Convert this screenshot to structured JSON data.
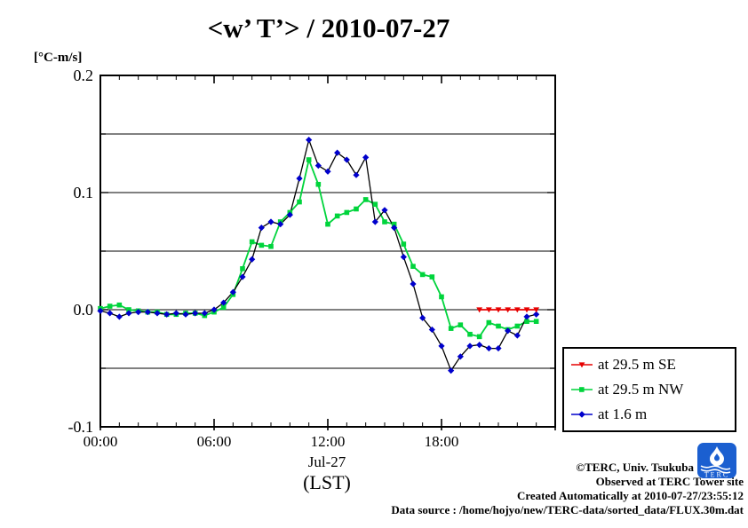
{
  "title": "<w’ T’> / 2010-07-27",
  "y_unit_label": "[°C-m/s]",
  "chart_data": {
    "type": "line",
    "title": "<w’ T’> / 2010-07-27",
    "ylabel": "[°C-m/s]",
    "xlabel": "Jul-27 (LST)",
    "x_sub_label": "Jul-27",
    "x_unit_label": "(LST)",
    "xlim_hours": [
      0,
      24
    ],
    "ylim": [
      -0.1,
      0.2
    ],
    "x_tick_labels": [
      "00:00",
      "06:00",
      "12:00",
      "18:00"
    ],
    "x_tick_hours": [
      0,
      6,
      12,
      18
    ],
    "x_major_hours": [
      0,
      6,
      12,
      18,
      24
    ],
    "y_tick_values": [
      -0.1,
      0.0,
      0.1,
      0.2
    ],
    "y_tick_labels": [
      "-0.1",
      "0.0",
      "0.1",
      "0.2"
    ],
    "grid": true,
    "grid_values": [
      -0.05,
      0.0,
      0.05,
      0.1,
      0.15
    ],
    "legend_position": "outside-right-bottom",
    "x_times": [
      "00:00",
      "00:30",
      "01:00",
      "01:30",
      "02:00",
      "02:30",
      "03:00",
      "03:30",
      "04:00",
      "04:30",
      "05:00",
      "05:30",
      "06:00",
      "06:30",
      "07:00",
      "07:30",
      "08:00",
      "08:30",
      "09:00",
      "09:30",
      "10:00",
      "10:30",
      "11:00",
      "11:30",
      "12:00",
      "12:30",
      "13:00",
      "13:30",
      "14:00",
      "14:30",
      "15:00",
      "15:30",
      "16:00",
      "16:30",
      "17:00",
      "17:30",
      "18:00",
      "18:30",
      "19:00",
      "19:30",
      "20:00",
      "20:30",
      "21:00",
      "21:30",
      "22:00",
      "22:30",
      "23:00"
    ],
    "series": [
      {
        "name": "at 29.5 m NW",
        "color": "#00d43c",
        "line_color": "#00d43c",
        "marker": "square",
        "values": [
          0.001,
          0.003,
          0.004,
          0.0,
          -0.001,
          -0.002,
          -0.002,
          -0.004,
          -0.004,
          -0.003,
          -0.003,
          -0.005,
          -0.002,
          0.002,
          0.013,
          0.035,
          0.058,
          0.055,
          0.054,
          0.075,
          0.083,
          0.092,
          0.128,
          0.107,
          0.073,
          0.08,
          0.083,
          0.086,
          0.094,
          0.09,
          0.075,
          0.073,
          0.056,
          0.037,
          0.03,
          0.028,
          0.011,
          -0.016,
          -0.013,
          -0.021,
          -0.023,
          -0.011,
          -0.014,
          -0.017,
          -0.014,
          -0.01,
          -0.01
        ]
      },
      {
        "name": "at 1.6 m",
        "color": "#0000cc",
        "line_color": "#000000",
        "marker": "diamond",
        "values": [
          -0.001,
          -0.003,
          -0.006,
          -0.003,
          -0.002,
          -0.002,
          -0.003,
          -0.004,
          -0.003,
          -0.004,
          -0.003,
          -0.003,
          0.0,
          0.006,
          0.015,
          0.028,
          0.043,
          0.07,
          0.075,
          0.073,
          0.081,
          0.112,
          0.145,
          0.123,
          0.118,
          0.134,
          0.128,
          0.115,
          0.13,
          0.075,
          0.085,
          0.07,
          0.045,
          0.022,
          -0.007,
          -0.017,
          -0.031,
          -0.052,
          -0.04,
          -0.031,
          -0.03,
          -0.033,
          -0.033,
          -0.018,
          -0.022,
          -0.006,
          -0.004
        ]
      },
      {
        "name": "at 29.5 m SE",
        "color": "#e60000",
        "line_color": "#e60000",
        "marker": "triangle-down",
        "x_times": [
          "20:00",
          "20:30",
          "21:00",
          "21:30",
          "22:00",
          "22:30",
          "23:00"
        ],
        "values": [
          0.0,
          0.0,
          0.0,
          0.0,
          0.0,
          0.0,
          0.0
        ]
      }
    ]
  },
  "legend": {
    "entries": [
      {
        "label": "at 29.5 m SE",
        "color": "#e60000",
        "marker": "triangle-down"
      },
      {
        "label": "at 29.5 m NW",
        "color": "#00d43c",
        "marker": "square"
      },
      {
        "label": "at 1.6 m",
        "color": "#0000cc",
        "marker": "diamond"
      }
    ]
  },
  "footer": {
    "lines": [
      "©TERC, Univ. Tsukuba",
      "Observed at TERC Tower site",
      "Created Automatically at 2010-07-27/23:55:12",
      "Data source : /home/hojyo/new/TERC-data/sorted_data/FLUX.30m.dat"
    ]
  },
  "logo": {
    "text": "TERC",
    "color": "#1b5fd0"
  }
}
